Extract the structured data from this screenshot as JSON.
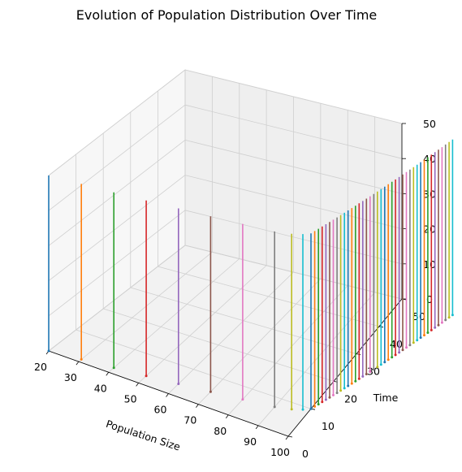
{
  "chart_data": {
    "type": "line",
    "projection": "3d",
    "title": "Evolution of Population Distribution Over Time",
    "xlabel": "Population Size",
    "ylabel": "Time",
    "zlabel": "",
    "xlim": [
      20,
      100
    ],
    "ylim": [
      0,
      50
    ],
    "zlim": [
      0,
      50
    ],
    "xticks": [
      "20",
      "30",
      "40",
      "50",
      "60",
      "70",
      "80",
      "90",
      "100"
    ],
    "yticks": [
      "0",
      "10",
      "20",
      "30",
      "40",
      "50"
    ],
    "zticks": [
      "0",
      "10",
      "20",
      "30",
      "40",
      "50"
    ],
    "grid": true,
    "legend": "none",
    "series_x_values": [
      20,
      30,
      40,
      50,
      60,
      70,
      80,
      90,
      95,
      98,
      100,
      100.5,
      101,
      101.5,
      102,
      102.5,
      103,
      103.5,
      104,
      104.5,
      105,
      105.5,
      106,
      106.5,
      107,
      107.5,
      108,
      108.5,
      109,
      109.5,
      110,
      110.5,
      111,
      111.5,
      112,
      112.5,
      113,
      113.5,
      114,
      114.5,
      115,
      115.5,
      116,
      116.5,
      117,
      117.5,
      118,
      118.5,
      119,
      119.5
    ],
    "series_y_values": [
      0,
      1,
      2,
      3,
      4,
      5,
      6,
      7,
      8,
      9,
      10,
      11,
      12,
      13,
      14,
      15,
      16,
      17,
      18,
      19,
      20,
      21,
      22,
      23,
      24,
      25,
      26,
      27,
      28,
      29,
      30,
      31,
      32,
      33,
      34,
      35,
      36,
      37,
      38,
      39,
      40,
      41,
      42,
      43,
      44,
      45,
      46,
      47,
      48,
      49
    ],
    "z_range": [
      0,
      50
    ],
    "colors": [
      "#1f77b4",
      "#ff7f0e",
      "#2ca02c",
      "#d62728",
      "#9467bd",
      "#8c564b",
      "#e377c2",
      "#7f7f7f",
      "#bcbd22",
      "#17becf"
    ]
  }
}
